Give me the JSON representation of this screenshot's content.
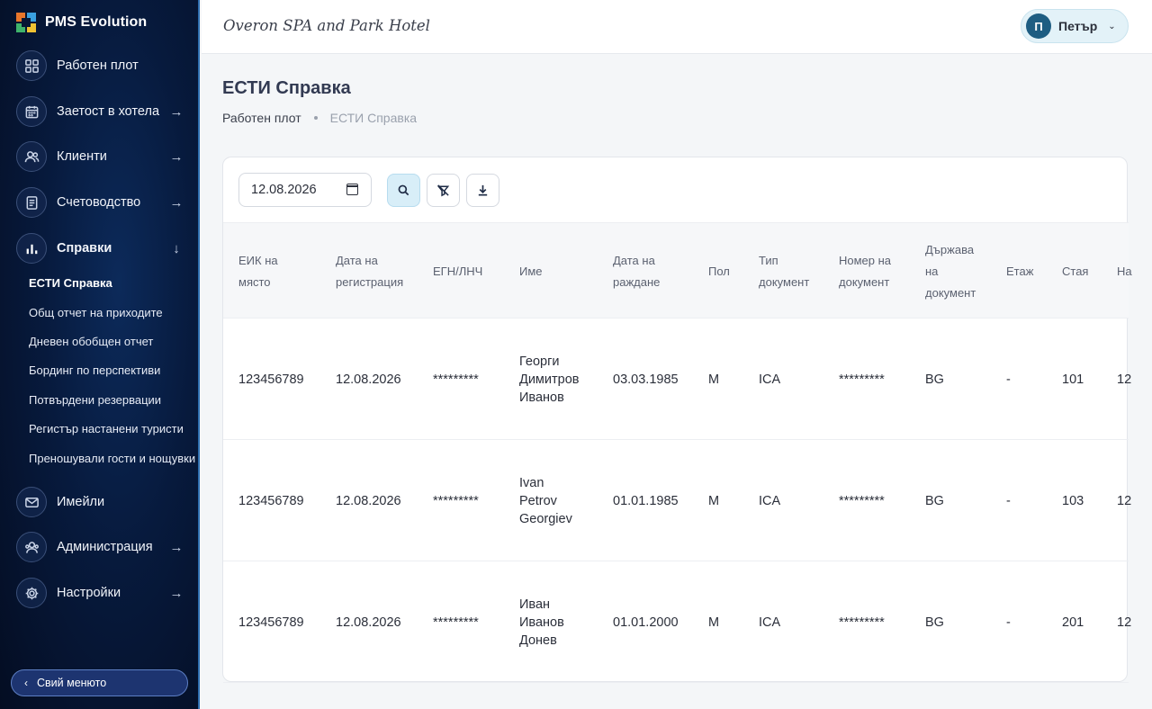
{
  "app": {
    "name": "PMS Evolution"
  },
  "header": {
    "hotel_name": "Overon SPA and Park Hotel",
    "user": {
      "initial": "П",
      "name": "Петър"
    }
  },
  "sidebar": {
    "items": [
      {
        "label": "Работен плот",
        "icon": "dashboard-icon",
        "arrow": ""
      },
      {
        "label": "Заетост в хотела",
        "icon": "calendar-icon",
        "arrow": "→"
      },
      {
        "label": "Клиенти",
        "icon": "users-icon",
        "arrow": "→"
      },
      {
        "label": "Счетоводство",
        "icon": "ledger-icon",
        "arrow": "→"
      },
      {
        "label": "Справки",
        "icon": "bar-chart-icon",
        "arrow": "↓"
      },
      {
        "label": "Имейли",
        "icon": "mail-icon",
        "arrow": ""
      },
      {
        "label": "Администрация",
        "icon": "admin-users-icon",
        "arrow": "→"
      },
      {
        "label": "Настройки",
        "icon": "gear-icon",
        "arrow": "→"
      }
    ],
    "sub_items": [
      "ЕСТИ Справка",
      "Общ отчет на приходите",
      "Дневен обобщен отчет",
      "Бординг по перспективи",
      "Потвърдени резервации",
      "Регистър настанени туристи",
      "Преношували гости и нощувки"
    ],
    "collapse_label": "Свий менюто"
  },
  "page": {
    "title": "ЕСТИ Справка",
    "breadcrumb": {
      "home": "Работен плот",
      "current": "ЕСТИ Справка"
    }
  },
  "filters": {
    "date": "12.08.2026"
  },
  "table": {
    "columns": [
      [
        "ЕИК на",
        "място"
      ],
      [
        "Дата на",
        "регистрация"
      ],
      [
        "ЕГН/ЛНЧ"
      ],
      [
        "Име"
      ],
      [
        "Дата на",
        "раждане"
      ],
      [
        "Пол"
      ],
      [
        "Тип",
        "документ"
      ],
      [
        "Номер на",
        "документ"
      ],
      [
        "Държава",
        "на",
        "документ"
      ],
      [
        "Етаж"
      ],
      [
        "Стая"
      ],
      [
        "На"
      ]
    ],
    "rows": [
      {
        "eik": "123456789",
        "reg_date": "12.08.2026",
        "egn": "*********",
        "name": [
          "Георги",
          "Димитров",
          "Иванов"
        ],
        "birth": "03.03.1985",
        "sex": "M",
        "doc_type": "ICA",
        "doc_no": "*********",
        "country": "BG",
        "floor": "-",
        "room": "101",
        "extra": "12"
      },
      {
        "eik": "123456789",
        "reg_date": "12.08.2026",
        "egn": "*********",
        "name": [
          "Ivan",
          "Petrov",
          "Georgiev"
        ],
        "birth": "01.01.1985",
        "sex": "M",
        "doc_type": "ICA",
        "doc_no": "*********",
        "country": "BG",
        "floor": "-",
        "room": "103",
        "extra": "12"
      },
      {
        "eik": "123456789",
        "reg_date": "12.08.2026",
        "egn": "*********",
        "name": [
          "Иван",
          "Иванов",
          "Донев"
        ],
        "birth": "01.01.2000",
        "sex": "M",
        "doc_type": "ICA",
        "doc_no": "*********",
        "country": "BG",
        "floor": "-",
        "room": "201",
        "extra": "12"
      }
    ]
  }
}
